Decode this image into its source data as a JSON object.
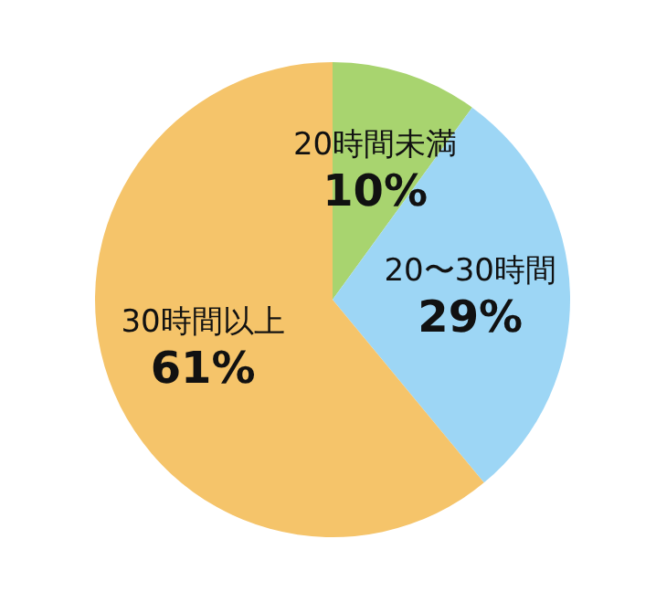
{
  "chart_data": {
    "type": "pie",
    "categories": [
      "20時間未満",
      "20〜30時間",
      "30時間以上"
    ],
    "values": [
      10,
      29,
      61
    ],
    "colors": [
      "#a8d46f",
      "#9dd6f5",
      "#f5c46a"
    ],
    "value_labels": [
      "10%",
      "29%",
      "61%"
    ],
    "legend": false
  }
}
